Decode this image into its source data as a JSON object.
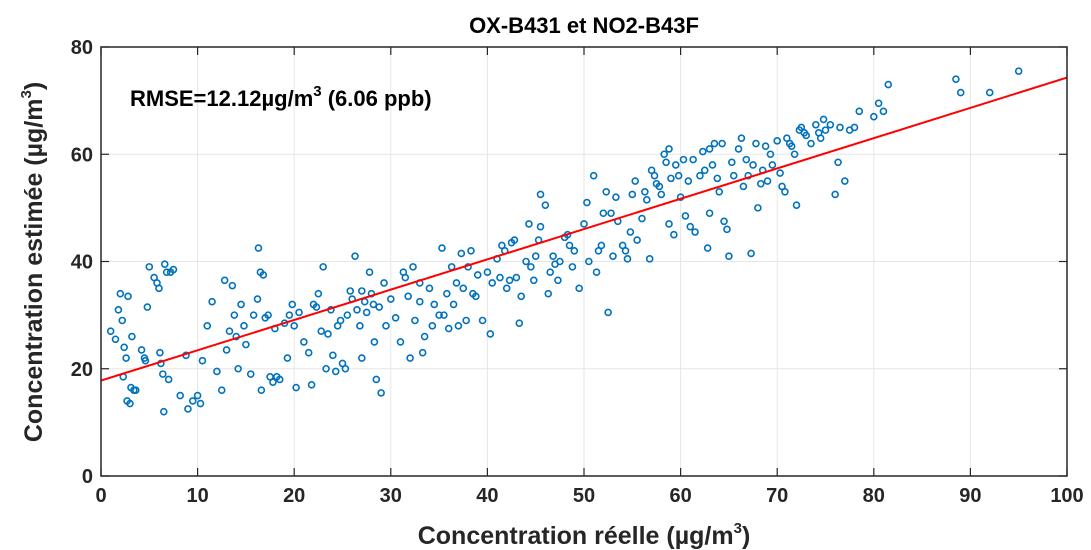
{
  "chart_data": {
    "type": "scatter",
    "title": "OX-B431  et  NO2-B43F",
    "xlabel": "Concentration réelle (µg/m",
    "xlabel_sup": "3",
    "xlabel_end": ")",
    "ylabel": "Concentration estimée (µg/m",
    "ylabel_sup": "3",
    "ylabel_end": ")",
    "annotation": "RMSE=12.12µg/m",
    "annotation_sup": "3",
    "annotation_end": " (6.06 ppb)",
    "xlim": [
      0,
      100
    ],
    "ylim": [
      0,
      80
    ],
    "xticks": [
      0,
      10,
      20,
      30,
      40,
      50,
      60,
      70,
      80,
      90,
      100
    ],
    "yticks": [
      0,
      20,
      40,
      60,
      80
    ],
    "grid": true,
    "colors": {
      "points": "#0072BD",
      "fit_line": "#FF0000",
      "grid": "#E6E6E6",
      "axes": "#262626"
    },
    "fit_line": {
      "x": [
        0,
        100
      ],
      "y": [
        17.8,
        74.3
      ]
    },
    "points": [
      [
        1.0,
        27
      ],
      [
        1.5,
        25.5
      ],
      [
        1.8,
        31
      ],
      [
        2.0,
        34
      ],
      [
        2.2,
        29
      ],
      [
        2.3,
        18.5
      ],
      [
        2.4,
        24
      ],
      [
        2.6,
        22
      ],
      [
        2.7,
        14
      ],
      [
        2.8,
        33.5
      ],
      [
        3.0,
        13.5
      ],
      [
        3.1,
        16.5
      ],
      [
        3.2,
        26
      ],
      [
        3.4,
        16
      ],
      [
        3.6,
        16
      ],
      [
        4.2,
        23.5
      ],
      [
        4.5,
        22
      ],
      [
        4.6,
        21.5
      ],
      [
        4.8,
        31.5
      ],
      [
        5.0,
        39
      ],
      [
        5.5,
        37
      ],
      [
        5.8,
        36
      ],
      [
        6.0,
        35
      ],
      [
        6.1,
        23
      ],
      [
        6.2,
        21
      ],
      [
        6.4,
        19
      ],
      [
        6.5,
        12
      ],
      [
        6.6,
        39.5
      ],
      [
        6.8,
        38
      ],
      [
        7.0,
        18
      ],
      [
        7.2,
        38
      ],
      [
        7.5,
        38.5
      ],
      [
        8.2,
        15
      ],
      [
        8.8,
        22.5
      ],
      [
        9.0,
        12.5
      ],
      [
        9.5,
        14
      ],
      [
        10.0,
        15
      ],
      [
        10.3,
        13.5
      ],
      [
        10.5,
        21.5
      ],
      [
        11.0,
        28
      ],
      [
        11.5,
        32.5
      ],
      [
        12.0,
        19.5
      ],
      [
        12.5,
        16
      ],
      [
        12.8,
        36.5
      ],
      [
        13.0,
        23.5
      ],
      [
        13.3,
        27
      ],
      [
        13.6,
        35.5
      ],
      [
        13.8,
        30
      ],
      [
        14.0,
        26
      ],
      [
        14.2,
        20
      ],
      [
        14.5,
        32
      ],
      [
        14.8,
        28
      ],
      [
        15.0,
        24.5
      ],
      [
        15.5,
        19
      ],
      [
        15.8,
        30
      ],
      [
        16.2,
        33
      ],
      [
        16.3,
        42.5
      ],
      [
        16.5,
        38
      ],
      [
        16.6,
        16
      ],
      [
        16.8,
        37.5
      ],
      [
        17.0,
        29.5
      ],
      [
        17.3,
        30
      ],
      [
        17.5,
        18.5
      ],
      [
        17.8,
        17.5
      ],
      [
        18.0,
        27.5
      ],
      [
        18.2,
        18.5
      ],
      [
        18.5,
        18
      ],
      [
        19.0,
        28.5
      ],
      [
        19.3,
        22
      ],
      [
        19.5,
        30
      ],
      [
        19.8,
        32
      ],
      [
        20.0,
        28
      ],
      [
        20.2,
        16.5
      ],
      [
        20.5,
        30.5
      ],
      [
        21.0,
        25
      ],
      [
        21.5,
        23
      ],
      [
        21.8,
        17
      ],
      [
        22.0,
        32
      ],
      [
        22.3,
        31.5
      ],
      [
        22.5,
        34
      ],
      [
        22.8,
        27
      ],
      [
        23.0,
        39
      ],
      [
        23.3,
        20
      ],
      [
        23.5,
        26.5
      ],
      [
        23.8,
        31
      ],
      [
        24.0,
        22.5
      ],
      [
        24.3,
        19.5
      ],
      [
        24.5,
        28
      ],
      [
        24.8,
        29
      ],
      [
        25.0,
        21
      ],
      [
        25.3,
        20
      ],
      [
        25.5,
        30
      ],
      [
        25.8,
        34.5
      ],
      [
        26.0,
        33
      ],
      [
        26.3,
        41
      ],
      [
        26.5,
        31
      ],
      [
        26.8,
        28
      ],
      [
        27.0,
        34.5
      ],
      [
        27.3,
        32.5
      ],
      [
        27.5,
        30.5
      ],
      [
        27.8,
        38
      ],
      [
        28.0,
        34
      ],
      [
        28.2,
        32
      ],
      [
        28.3,
        25
      ],
      [
        28.5,
        18
      ],
      [
        28.8,
        31.5
      ],
      [
        29.0,
        15.5
      ],
      [
        29.3,
        36
      ],
      [
        29.5,
        28
      ],
      [
        30.0,
        33
      ],
      [
        30.5,
        29.5
      ],
      [
        31.0,
        25
      ],
      [
        31.3,
        38
      ],
      [
        31.5,
        37
      ],
      [
        31.8,
        33.5
      ],
      [
        32.0,
        22
      ],
      [
        32.3,
        39
      ],
      [
        32.5,
        29
      ],
      [
        33.0,
        32.5
      ],
      [
        33.3,
        23
      ],
      [
        33.5,
        26
      ],
      [
        34.0,
        35
      ],
      [
        34.3,
        28
      ],
      [
        34.5,
        32
      ],
      [
        35.0,
        30
      ],
      [
        35.3,
        42.5
      ],
      [
        35.5,
        30
      ],
      [
        35.8,
        34
      ],
      [
        36.0,
        27.5
      ],
      [
        36.3,
        39
      ],
      [
        36.5,
        32
      ],
      [
        36.8,
        36
      ],
      [
        37.0,
        28
      ],
      [
        37.3,
        41.5
      ],
      [
        37.5,
        35
      ],
      [
        37.8,
        29
      ],
      [
        38.0,
        39
      ],
      [
        38.3,
        42
      ],
      [
        38.5,
        34
      ],
      [
        38.8,
        33.5
      ],
      [
        39.0,
        37.5
      ],
      [
        39.5,
        29
      ],
      [
        40.0,
        38
      ],
      [
        40.3,
        26.5
      ],
      [
        40.5,
        36
      ],
      [
        41.0,
        40.5
      ],
      [
        41.3,
        37
      ],
      [
        41.5,
        43
      ],
      [
        41.8,
        42
      ],
      [
        42.0,
        35
      ],
      [
        42.3,
        36.5
      ],
      [
        42.5,
        43.5
      ],
      [
        42.8,
        44
      ],
      [
        43.0,
        37
      ],
      [
        43.3,
        28.5
      ],
      [
        43.5,
        33.5
      ],
      [
        44.0,
        40
      ],
      [
        44.3,
        47
      ],
      [
        44.5,
        39
      ],
      [
        44.8,
        36.5
      ],
      [
        45.0,
        41
      ],
      [
        45.3,
        44
      ],
      [
        45.5,
        46.5
      ],
      [
        46.0,
        50.5
      ],
      [
        46.3,
        34
      ],
      [
        46.5,
        38
      ],
      [
        46.8,
        41
      ],
      [
        47.0,
        39.5
      ],
      [
        47.3,
        36.5
      ],
      [
        47.5,
        40
      ],
      [
        48.0,
        44.5
      ],
      [
        48.3,
        45
      ],
      [
        48.5,
        43
      ],
      [
        48.8,
        39
      ],
      [
        49.0,
        42
      ],
      [
        49.5,
        35
      ],
      [
        50.0,
        47
      ],
      [
        50.3,
        51
      ],
      [
        50.5,
        40
      ],
      [
        51.0,
        56
      ],
      [
        51.3,
        38
      ],
      [
        51.5,
        42
      ],
      [
        51.8,
        43
      ],
      [
        52.0,
        49
      ],
      [
        52.3,
        53
      ],
      [
        52.5,
        30.5
      ],
      [
        52.8,
        49
      ],
      [
        53.0,
        41
      ],
      [
        53.3,
        52
      ],
      [
        53.5,
        47.5
      ],
      [
        54.0,
        43
      ],
      [
        54.3,
        42
      ],
      [
        54.5,
        40.5
      ],
      [
        54.8,
        45.5
      ],
      [
        55.0,
        52.5
      ],
      [
        55.3,
        55
      ],
      [
        55.5,
        44
      ],
      [
        56.0,
        48
      ],
      [
        56.3,
        53
      ],
      [
        56.5,
        51.5
      ],
      [
        56.8,
        40.5
      ],
      [
        57.0,
        57
      ],
      [
        57.3,
        56
      ],
      [
        57.5,
        54.5
      ],
      [
        57.8,
        54
      ],
      [
        58.0,
        52.5
      ],
      [
        58.3,
        60
      ],
      [
        58.5,
        58.5
      ],
      [
        58.8,
        47
      ],
      [
        59.0,
        55.5
      ],
      [
        59.3,
        45
      ],
      [
        59.5,
        58
      ],
      [
        59.8,
        56
      ],
      [
        60.0,
        52
      ],
      [
        60.3,
        59
      ],
      [
        60.5,
        48.5
      ],
      [
        60.8,
        55
      ],
      [
        61.0,
        46.5
      ],
      [
        61.3,
        59
      ],
      [
        61.5,
        45.5
      ],
      [
        62.0,
        56
      ],
      [
        62.3,
        60.5
      ],
      [
        62.5,
        57
      ],
      [
        62.8,
        42.5
      ],
      [
        63.0,
        61
      ],
      [
        63.3,
        58
      ],
      [
        63.5,
        62
      ],
      [
        63.8,
        55.5
      ],
      [
        64.0,
        53
      ],
      [
        64.3,
        62
      ],
      [
        64.5,
        47.5
      ],
      [
        64.8,
        46
      ],
      [
        65.0,
        41
      ],
      [
        65.3,
        58.5
      ],
      [
        65.5,
        56
      ],
      [
        66.0,
        61
      ],
      [
        66.3,
        63
      ],
      [
        66.5,
        54
      ],
      [
        66.8,
        59
      ],
      [
        67.0,
        56
      ],
      [
        67.3,
        41.5
      ],
      [
        67.5,
        58
      ],
      [
        67.8,
        62
      ],
      [
        68.0,
        50
      ],
      [
        68.3,
        54.5
      ],
      [
        68.5,
        57
      ],
      [
        68.8,
        61.5
      ],
      [
        69.0,
        55
      ],
      [
        69.3,
        60
      ],
      [
        69.5,
        58
      ],
      [
        70.0,
        62.5
      ],
      [
        70.3,
        56.5
      ],
      [
        70.5,
        54
      ],
      [
        70.8,
        53
      ],
      [
        71.0,
        63
      ],
      [
        71.3,
        62
      ],
      [
        71.5,
        61.5
      ],
      [
        71.8,
        60
      ],
      [
        72.0,
        50.5
      ],
      [
        72.3,
        64.5
      ],
      [
        72.5,
        65
      ],
      [
        72.8,
        64
      ],
      [
        73.0,
        63.5
      ],
      [
        73.5,
        62
      ],
      [
        74.0,
        65.5
      ],
      [
        74.3,
        64
      ],
      [
        74.5,
        63
      ],
      [
        74.8,
        66.5
      ],
      [
        75.0,
        64.5
      ],
      [
        75.5,
        65.5
      ],
      [
        76.0,
        52.5
      ],
      [
        76.3,
        58.5
      ],
      [
        76.5,
        65
      ],
      [
        77.0,
        55
      ],
      [
        77.5,
        64.5
      ],
      [
        78.0,
        65
      ],
      [
        78.5,
        68
      ],
      [
        80.0,
        67
      ],
      [
        80.5,
        69.5
      ],
      [
        81.0,
        68
      ],
      [
        81.5,
        73
      ],
      [
        88.5,
        74
      ],
      [
        89.0,
        71.5
      ],
      [
        92.0,
        71.5
      ],
      [
        95.0,
        75.5
      ],
      [
        27.0,
        22
      ],
      [
        33.0,
        36
      ],
      [
        45.5,
        52.5
      ],
      [
        58.8,
        61
      ],
      [
        63.0,
        49
      ]
    ]
  }
}
